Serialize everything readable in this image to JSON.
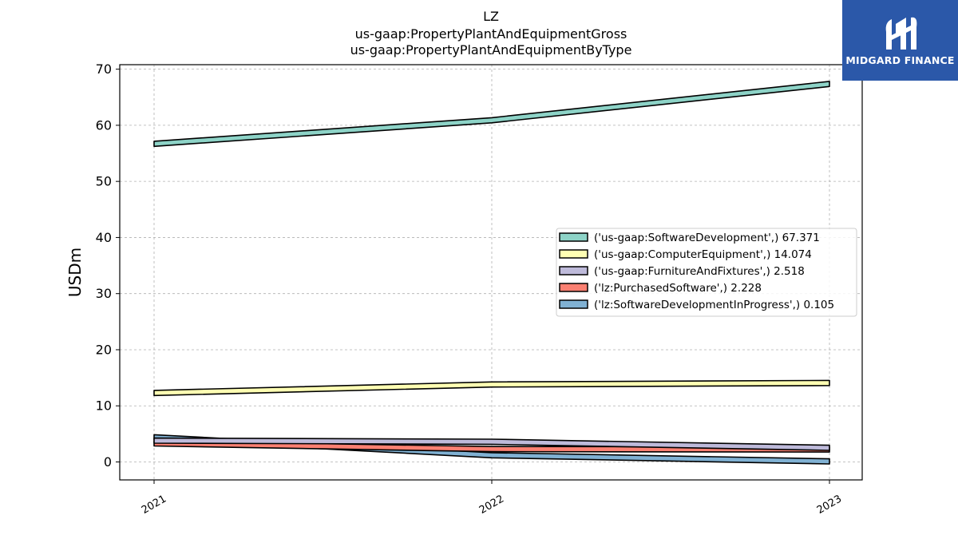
{
  "logo": {
    "text": "MIDGARD FINANCE",
    "background": "#2b58a9"
  },
  "chart_data": {
    "type": "area",
    "title": [
      "LZ",
      "us-gaap:PropertyPlantAndEquipmentGross",
      "us-gaap:PropertyPlantAndEquipmentByType"
    ],
    "xlabel": "",
    "ylabel": "USDm",
    "categories": [
      "2021",
      "2022",
      "2023"
    ],
    "ylim": [
      -3.2,
      70.8
    ],
    "yticks": [
      0,
      10,
      20,
      30,
      40,
      50,
      60,
      70
    ],
    "grid": true,
    "legend_position": "center-right",
    "series": [
      {
        "name": "('us-gaap:SoftwareDevelopment',) 67.371",
        "color": "#8dd3c7",
        "values": [
          56.7,
          60.9,
          67.371
        ]
      },
      {
        "name": "('us-gaap:ComputerEquipment',) 14.074",
        "color": "#ffffb3",
        "values": [
          12.3,
          13.8,
          14.074
        ]
      },
      {
        "name": "('us-gaap:FurnitureAndFixtures',) 2.518",
        "color": "#bebada",
        "values": [
          3.8,
          3.6,
          2.518
        ]
      },
      {
        "name": "('lz:PurchasedSoftware',) 2.228",
        "color": "#fb8072",
        "values": [
          3.3,
          2.3,
          2.228
        ]
      },
      {
        "name": "('lz:SoftwareDevelopmentInProgress',) 0.105",
        "color": "#80b1d3",
        "values": [
          4.4,
          1.2,
          0.105
        ]
      }
    ]
  }
}
